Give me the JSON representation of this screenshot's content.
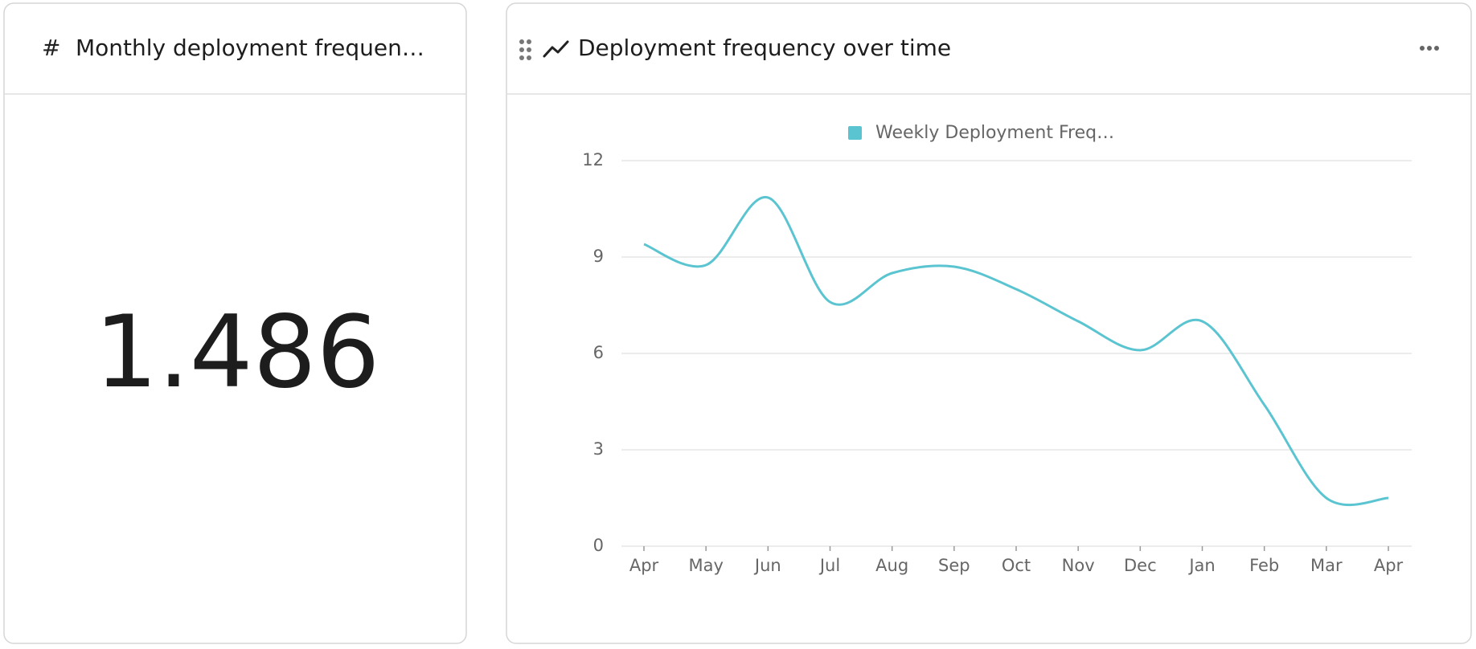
{
  "kpi": {
    "title": "Monthly deployment frequen…",
    "value": 1.486
  },
  "chart_data": {
    "type": "line",
    "title": "Deployment frequency over time",
    "categories": [
      "Apr",
      "May",
      "Jun",
      "Jul",
      "Aug",
      "Sep",
      "Oct",
      "Nov",
      "Dec",
      "Jan",
      "Feb",
      "Mar",
      "Apr"
    ],
    "series": [
      {
        "name": "Weekly Deployment Freq…",
        "color": "#5bc4d1",
        "values": [
          9.4,
          8.75,
          10.85,
          7.6,
          8.5,
          8.7,
          8.0,
          7.0,
          6.1,
          7.0,
          4.4,
          1.5,
          1.5
        ]
      }
    ],
    "ylim": [
      0,
      12
    ],
    "yticks": [
      0,
      3,
      6,
      9,
      12
    ],
    "grid": true,
    "legend": "top"
  }
}
